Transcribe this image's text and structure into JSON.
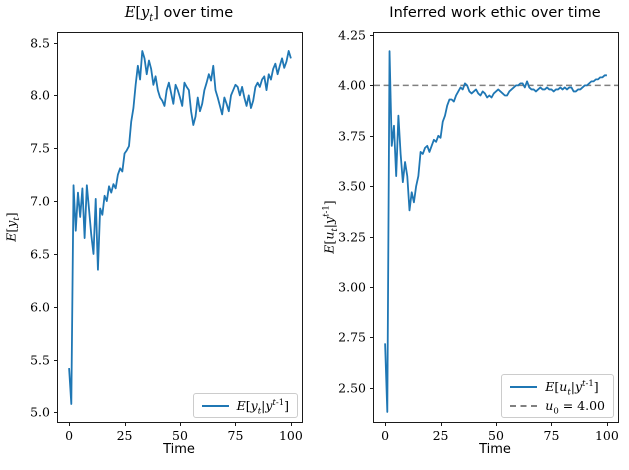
{
  "figure": {
    "background": "#ffffff",
    "line_blue": "#1f77b4",
    "dash_gray": "#808080",
    "spine_color": "#1a1a1a"
  },
  "chart_data": [
    {
      "type": "line",
      "title_math": "E[y_{t}]",
      "title_text": " over time",
      "xlabel": "Time",
      "ylabel_math": "E[y_{t}]",
      "xlim": [
        -5,
        105
      ],
      "ylim": [
        4.91,
        8.59
      ],
      "xticks": [
        0,
        25,
        50,
        75,
        100
      ],
      "yticks": [
        5.0,
        5.5,
        6.0,
        6.5,
        7.0,
        7.5,
        8.0,
        8.5
      ],
      "ytick_decimals": 1,
      "grid": false,
      "legend_position": "lower right",
      "legend": [
        {
          "label_math": "E[y_{t}|y^{t-1}]",
          "color": "#1f77b4",
          "style": "solid"
        }
      ],
      "series": [
        {
          "name_math": "E[y_{t}|y^{t-1}]",
          "color": "#1f77b4",
          "style": "solid",
          "x_start": 0,
          "x_step": 1,
          "values": [
            5.42,
            5.08,
            7.15,
            6.72,
            7.08,
            6.85,
            7.12,
            6.65,
            7.15,
            6.92,
            6.68,
            6.5,
            7.02,
            6.35,
            6.93,
            6.87,
            7.05,
            7.0,
            7.14,
            7.08,
            7.16,
            7.12,
            7.25,
            7.31,
            7.28,
            7.45,
            7.48,
            7.52,
            7.75,
            7.88,
            8.1,
            8.28,
            8.15,
            8.42,
            8.35,
            8.2,
            8.33,
            8.25,
            8.1,
            8.18,
            8.05,
            7.98,
            7.95,
            7.9,
            8.05,
            8.12,
            8.02,
            7.92,
            8.1,
            8.05,
            7.98,
            7.9,
            8.12,
            8.08,
            8.05,
            7.85,
            7.72,
            7.8,
            7.98,
            7.85,
            7.92,
            8.05,
            8.12,
            8.2,
            8.14,
            8.28,
            8.05,
            7.98,
            7.9,
            7.82,
            7.98,
            7.92,
            7.85,
            8.0,
            8.05,
            8.1,
            8.08,
            8.0,
            8.08,
            7.98,
            7.9,
            8.0,
            7.88,
            7.95,
            8.08,
            8.12,
            8.08,
            8.15,
            8.18,
            8.05,
            8.2,
            8.15,
            8.25,
            8.3,
            8.2,
            8.28,
            8.35,
            8.26,
            8.32,
            8.42,
            8.35
          ]
        }
      ]
    },
    {
      "type": "line",
      "title_math": "",
      "title_text": "Inferred work ethic over time",
      "xlabel": "Time",
      "ylabel_math": "E[u_{t}|y^{t-1}]",
      "xlim": [
        -5,
        105
      ],
      "ylim": [
        2.33,
        4.26
      ],
      "xticks": [
        0,
        25,
        50,
        75,
        100
      ],
      "yticks": [
        2.5,
        2.75,
        3.0,
        3.25,
        3.5,
        3.75,
        4.0,
        4.25
      ],
      "ytick_decimals": 2,
      "grid": false,
      "legend_position": "lower right",
      "hline": {
        "value": 4.0,
        "color": "#808080",
        "style": "dashed",
        "label_math": "u_{0} = 4.00"
      },
      "legend": [
        {
          "label_math": "E[u_{t}|y^{t-1}]",
          "color": "#1f77b4",
          "style": "solid"
        },
        {
          "label_math": "u_{0} = 4.00",
          "color": "#808080",
          "style": "dashed"
        }
      ],
      "series": [
        {
          "name_math": "E[u_{t}|y^{t-1}]",
          "color": "#1f77b4",
          "style": "solid",
          "x_start": 0,
          "x_step": 1,
          "values": [
            2.72,
            2.38,
            4.17,
            3.7,
            3.8,
            3.55,
            3.85,
            3.66,
            3.52,
            3.62,
            3.55,
            3.38,
            3.47,
            3.42,
            3.5,
            3.55,
            3.67,
            3.66,
            3.69,
            3.7,
            3.67,
            3.7,
            3.73,
            3.72,
            3.75,
            3.74,
            3.82,
            3.85,
            3.9,
            3.93,
            3.93,
            3.92,
            3.95,
            3.97,
            3.99,
            3.98,
            4.01,
            4.0,
            3.97,
            3.96,
            3.97,
            3.98,
            3.96,
            3.95,
            3.97,
            3.96,
            3.94,
            3.95,
            3.94,
            3.96,
            3.97,
            3.98,
            3.97,
            3.96,
            3.95,
            3.95,
            3.97,
            3.98,
            3.99,
            4.0,
            4.0,
            4.01,
            4.01,
            3.99,
            4.02,
            3.99,
            3.98,
            3.98,
            3.97,
            3.98,
            3.99,
            3.98,
            3.98,
            3.99,
            3.98,
            3.98,
            3.97,
            3.98,
            3.98,
            3.99,
            3.98,
            3.99,
            3.98,
            3.99,
            3.99,
            3.97,
            3.97,
            3.98,
            3.98,
            3.99,
            4.0,
            4.0,
            4.01,
            4.02,
            4.02,
            4.03,
            4.03,
            4.04,
            4.04,
            4.05,
            4.05
          ]
        }
      ]
    }
  ]
}
